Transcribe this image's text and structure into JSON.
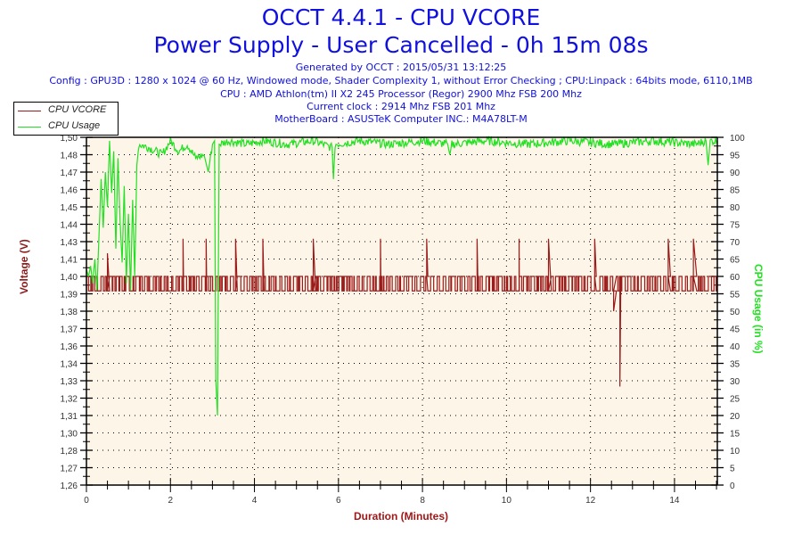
{
  "header": {
    "title": "OCCT 4.4.1 - CPU VCORE",
    "subtitle": "Power Supply - User Cancelled - 0h 15m 08s",
    "generated": "Generated by OCCT : 2015/05/31 13:12:25",
    "config": "Config : GPU3D : 1280 x 1024 @ 60 Hz, Windowed mode, Shader Complexity 1, without Error Checking ; CPU:Linpack : 64bits mode, 6110,1MB",
    "cpu": "CPU : AMD Athlon(tm) II X2 245 Processor (Regor) 2900 Mhz FSB 200 Mhz",
    "clock": "Current clock : 2914 Mhz FSB 201 Mhz",
    "motherboard": "MotherBoard : ASUSTeK Computer INC.: M4A78LT-M"
  },
  "legend": [
    {
      "label": "CPU VCORE",
      "color": "#9b1b1b"
    },
    {
      "label": "CPU Usage",
      "color": "#22e022"
    }
  ],
  "colors": {
    "title": "#1010e0",
    "plot_bg": "#fdf6e8",
    "vcore": "#9b1b1b",
    "usage": "#22e022",
    "grid": "#000000"
  },
  "chart_data": {
    "type": "line",
    "title": "OCCT 4.4.1 - CPU VCORE",
    "subtitle": "Power Supply - User Cancelled - 0h 15m 08s",
    "xlabel": "Duration (Minutes)",
    "ylabel": "Voltage (V)",
    "y2label": "CPU Usage (in %)",
    "xlim": [
      0,
      15.02
    ],
    "ylim": [
      1.26,
      1.5
    ],
    "y2lim": [
      0,
      100
    ],
    "x_ticks": [
      "0",
      "2",
      "4",
      "6",
      "8",
      "10",
      "12",
      "14"
    ],
    "y_ticks": [
      "1,50",
      "1,48",
      "1,47",
      "1,46",
      "1,45",
      "1,44",
      "1,43",
      "1,41",
      "1,40",
      "1,39",
      "1,38",
      "1,37",
      "1,36",
      "1,34",
      "1,33",
      "1,32",
      "1,31",
      "1,30",
      "1,28",
      "1,27",
      "1,26"
    ],
    "y2_ticks": [
      "100",
      "95",
      "90",
      "85",
      "80",
      "75",
      "70",
      "65",
      "60",
      "55",
      "50",
      "45",
      "40",
      "35",
      "30",
      "25",
      "20",
      "15",
      "10",
      "5",
      "0"
    ],
    "grid": true,
    "legend_position": "top-left",
    "series": [
      {
        "name": "CPU VCORE",
        "axis": "left",
        "baseline_high": 1.404,
        "baseline_low": 1.394,
        "spikes": [
          {
            "x": 0.5,
            "y": 1.42
          },
          {
            "x": 2.3,
            "y": 1.43
          },
          {
            "x": 2.85,
            "y": 1.43
          },
          {
            "x": 3.55,
            "y": 1.43
          },
          {
            "x": 4.2,
            "y": 1.43
          },
          {
            "x": 5.4,
            "y": 1.43
          },
          {
            "x": 7.0,
            "y": 1.43
          },
          {
            "x": 8.1,
            "y": 1.43
          },
          {
            "x": 9.3,
            "y": 1.43
          },
          {
            "x": 10.3,
            "y": 1.43
          },
          {
            "x": 11.0,
            "y": 1.43
          },
          {
            "x": 12.1,
            "y": 1.43
          },
          {
            "x": 12.55,
            "y": 1.38
          },
          {
            "x": 12.7,
            "y": 1.328
          },
          {
            "x": 13.85,
            "y": 1.43
          },
          {
            "x": 14.45,
            "y": 1.43
          }
        ]
      },
      {
        "name": "CPU Usage",
        "axis": "right",
        "points": [
          [
            0.0,
            62
          ],
          [
            0.05,
            60
          ],
          [
            0.1,
            63
          ],
          [
            0.15,
            58
          ],
          [
            0.2,
            65
          ],
          [
            0.25,
            56
          ],
          [
            0.3,
            72
          ],
          [
            0.35,
            88
          ],
          [
            0.4,
            74
          ],
          [
            0.45,
            90
          ],
          [
            0.5,
            80
          ],
          [
            0.55,
            99
          ],
          [
            0.6,
            84
          ],
          [
            0.65,
            96
          ],
          [
            0.7,
            68
          ],
          [
            0.75,
            94
          ],
          [
            0.8,
            76
          ],
          [
            0.85,
            64
          ],
          [
            0.9,
            86
          ],
          [
            0.95,
            58
          ],
          [
            1.0,
            78
          ],
          [
            1.05,
            56
          ],
          [
            1.1,
            82
          ],
          [
            1.15,
            60
          ],
          [
            1.2,
            92
          ],
          [
            1.25,
            98
          ],
          [
            1.5,
            97
          ],
          [
            1.8,
            95
          ],
          [
            2.0,
            99
          ],
          [
            2.2,
            96
          ],
          [
            2.4,
            98
          ],
          [
            2.6,
            94
          ],
          [
            2.8,
            95
          ],
          [
            2.9,
            90
          ],
          [
            3.0,
            98
          ],
          [
            3.05,
            99
          ],
          [
            3.08,
            30
          ],
          [
            3.12,
            20
          ],
          [
            3.16,
            98
          ],
          [
            3.4,
            99
          ],
          [
            3.8,
            98
          ],
          [
            4.2,
            99
          ],
          [
            4.8,
            98
          ],
          [
            5.4,
            99
          ],
          [
            5.85,
            97
          ],
          [
            5.88,
            88
          ],
          [
            5.92,
            98
          ],
          [
            6.5,
            99
          ],
          [
            7.2,
            98
          ],
          [
            8.0,
            99
          ],
          [
            8.6,
            98
          ],
          [
            8.65,
            95
          ],
          [
            8.7,
            98
          ],
          [
            9.5,
            99
          ],
          [
            10.5,
            98
          ],
          [
            11.5,
            99
          ],
          [
            12.5,
            98
          ],
          [
            13.5,
            99
          ],
          [
            14.5,
            98
          ],
          [
            14.75,
            99
          ],
          [
            14.8,
            92
          ],
          [
            14.85,
            99
          ],
          [
            15.02,
            99
          ]
        ]
      }
    ]
  }
}
